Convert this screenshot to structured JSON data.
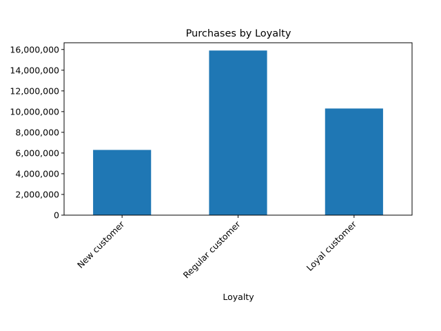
{
  "chart_data": {
    "type": "bar",
    "title": "Purchases by Loyalty",
    "xlabel": "Loyalty",
    "ylabel": "",
    "categories": [
      "New customer",
      "Regular customer",
      "Loyal customer"
    ],
    "values": [
      6300000,
      15900000,
      10300000
    ],
    "ylim": [
      0,
      16650000
    ],
    "yticks": [
      0,
      2000000,
      4000000,
      6000000,
      8000000,
      10000000,
      12000000,
      14000000,
      16000000
    ],
    "ytick_labels": [
      "0",
      "2,000,000",
      "4,000,000",
      "6,000,000",
      "8,000,000",
      "10,000,000",
      "12,000,000",
      "14,000,000",
      "16,000,000"
    ],
    "bar_color": "#1f77b4",
    "grid": false,
    "legend": "none"
  }
}
